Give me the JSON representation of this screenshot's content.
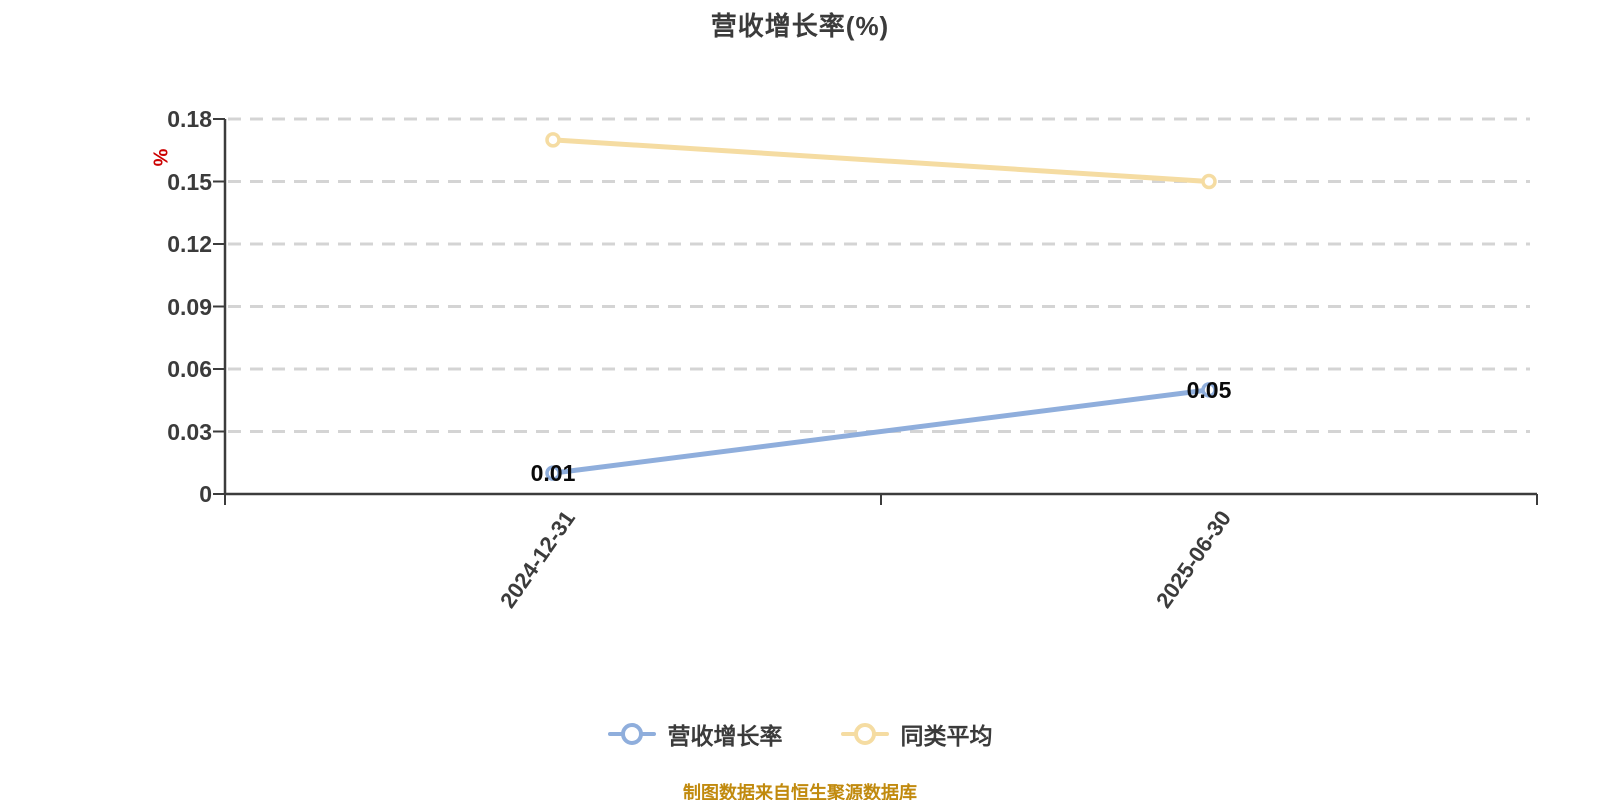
{
  "title": "营收增长率(%)",
  "y_axis": {
    "label": "%",
    "label_color": "#cc0000"
  },
  "footer": {
    "text": "制图数据来自恒生聚源数据库",
    "color": "#c18a0e"
  },
  "chart_data": {
    "type": "line",
    "title": "营收增长率(%)",
    "categories": [
      "2024-12-31",
      "2025-06-30"
    ],
    "x_label_rotation_deg": -55,
    "ylabel": "%",
    "ylim": [
      0,
      0.18
    ],
    "yticks": [
      0,
      0.03,
      0.06,
      0.09,
      0.12,
      0.15,
      0.18
    ],
    "grid": "horizontal-dashed",
    "grid_color": "#d4d4d4",
    "axis_color": "#3c3c3c",
    "legend_position": "bottom",
    "series": [
      {
        "name": "营收增长率",
        "values": [
          0.01,
          0.05
        ],
        "data_labels": [
          "0.01",
          "0.05"
        ],
        "color": "#8faedc",
        "point_fill": "#ffffff"
      },
      {
        "name": "同类平均",
        "values": [
          0.17,
          0.15
        ],
        "data_labels": null,
        "color": "#f5dca2",
        "point_fill": "#ffffff"
      }
    ]
  }
}
